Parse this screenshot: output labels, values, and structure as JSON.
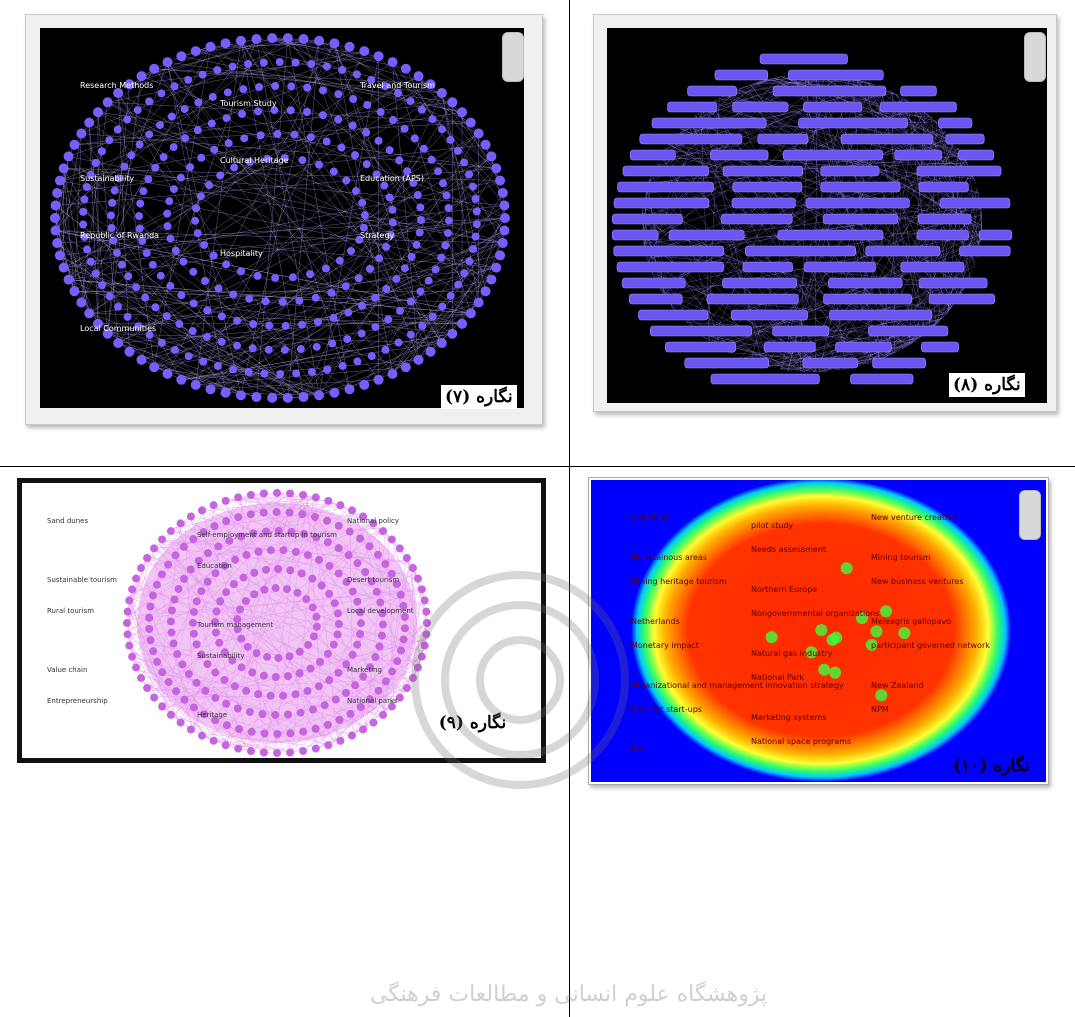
{
  "figures": [
    {
      "id": "fig7",
      "caption": "نگاره (۷)"
    },
    {
      "id": "fig8",
      "caption": "نگاره (۸)"
    },
    {
      "id": "fig9",
      "caption": "نگاره (۹)"
    },
    {
      "id": "fig10",
      "caption": "نگاره (۱۰)"
    }
  ],
  "fig7_labels": [
    "Research Methods",
    "Tourism Study",
    "Travel and Tourism",
    "Sustainability",
    "Cultural Heritage",
    "Education (APS)",
    "Republic of Rwanda",
    "Hospitality",
    "Strategy",
    "Local Communities"
  ],
  "fig9_labels": [
    "Sand dunes",
    "Self-employment and startup in tourism",
    "National policy",
    "Sustainable tourism",
    "Education",
    "Desert tourism",
    "Rural tourism",
    "Tourism management",
    "Local development",
    "Value chain",
    "Sustainability",
    "Marketing",
    "Entrepreneurship",
    "Heritage",
    "National parks"
  ],
  "fig10_labels": [
    "modeling",
    "pilot study",
    "New venture creation",
    "Mountainous areas",
    "Needs assessment",
    "Mining tourism",
    "Mining heritage tourism",
    "Northern Europe",
    "New business ventures",
    "Netherlands",
    "Nongovernmental organizations",
    "Meleagris gallopavo",
    "Monetary impact",
    "Natural gas industry",
    "participant governed network",
    "Organizational and management innovation strategy",
    "National Park",
    "New Zealand",
    "Nascent start-ups",
    "Marketing systems",
    "NPM",
    "Net",
    "National space programs"
  ],
  "watermark_text": "پژوهشگاه علوم انسانی و مطالعات فرهنگی"
}
